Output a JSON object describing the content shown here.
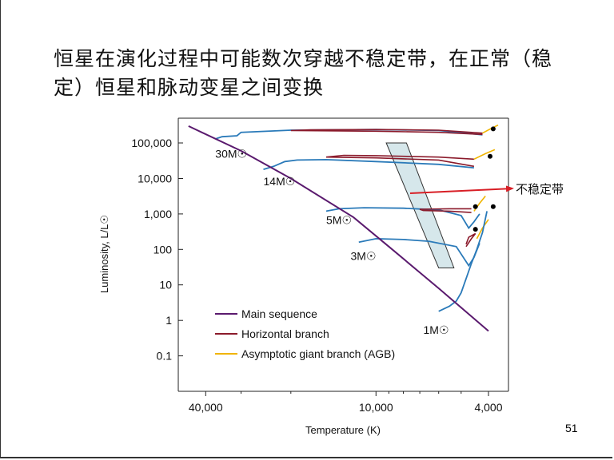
{
  "slide": {
    "title": "恒星在演化过程中可能数次穿越不稳定带，在正常（稳定）恒星和脉动变星之间变换",
    "page_number": "51"
  },
  "chart_data": {
    "type": "line",
    "title": "",
    "xlabel": "Temperature (K)",
    "ylabel": "Luminosity, L/L☉",
    "x_scale": "log",
    "x_reversed": true,
    "x_range": [
      50000,
      3400
    ],
    "y_scale": "log",
    "y_range": [
      0.01,
      500000
    ],
    "x_ticks": [
      {
        "value": 40000,
        "label": "40,000"
      },
      {
        "value": 10000,
        "label": "10,000"
      },
      {
        "value": 4000,
        "label": "4,000"
      }
    ],
    "x_minor_ticks": [
      30000,
      20000,
      9000,
      8000,
      7000,
      6000,
      5000
    ],
    "y_ticks": [
      {
        "value": 100000,
        "label": "100,000"
      },
      {
        "value": 10000,
        "label": "10,000"
      },
      {
        "value": 1000,
        "label": "1,000"
      },
      {
        "value": 100,
        "label": "100"
      },
      {
        "value": 10,
        "label": "10"
      },
      {
        "value": 1,
        "label": "1"
      },
      {
        "value": 0.1,
        "label": "0.1"
      }
    ],
    "main_sequence": {
      "name": "Main sequence",
      "color": "#5a1a6e",
      "points": [
        [
          46000,
          300000
        ],
        [
          30000,
          60000
        ],
        [
          20000,
          10000
        ],
        [
          12000,
          800
        ],
        [
          9000,
          120
        ],
        [
          6000,
          8
        ],
        [
          4000,
          0.5
        ]
      ]
    },
    "mass_labels": [
      {
        "label": "30M☉",
        "t": 37000,
        "l": 38000
      },
      {
        "label": "14M☉",
        "t": 25000,
        "l": 6500
      },
      {
        "label": "5M☉",
        "t": 15000,
        "l": 520
      },
      {
        "label": "3M☉",
        "t": 12300,
        "l": 50
      },
      {
        "label": "1M☉",
        "t": 6800,
        "l": 0.42
      }
    ],
    "tracks": [
      {
        "mass": "30M☉",
        "evolution": [
          [
            37000,
            130000
          ],
          [
            35000,
            150000
          ],
          [
            31000,
            160000
          ],
          [
            30000,
            200000
          ],
          [
            20000,
            230000
          ],
          [
            10000,
            240000
          ],
          [
            6000,
            225000
          ],
          [
            4200,
            170000
          ]
        ],
        "horizontal_branch": [
          [
            4200,
            175000
          ],
          [
            6000,
            200000
          ],
          [
            10000,
            215000
          ],
          [
            20000,
            225000
          ],
          [
            17000,
            235000
          ],
          [
            10000,
            240000
          ],
          [
            6000,
            230000
          ],
          [
            4200,
            190000
          ]
        ],
        "agb": [
          [
            4200,
            190000
          ],
          [
            3900,
            260000
          ],
          [
            3700,
            320000
          ]
        ],
        "endpoint": [
          3850,
          250000
        ]
      },
      {
        "mass": "14M☉",
        "evolution": [
          [
            25000,
            18000
          ],
          [
            23000,
            22000
          ],
          [
            21000,
            30000
          ],
          [
            19000,
            33000
          ],
          [
            15000,
            34000
          ],
          [
            10000,
            30000
          ],
          [
            6000,
            25000
          ],
          [
            4500,
            20000
          ]
        ],
        "horizontal_branch": [
          [
            4500,
            22000
          ],
          [
            6000,
            33000
          ],
          [
            10000,
            38000
          ],
          [
            15000,
            40000
          ],
          [
            13000,
            45000
          ],
          [
            10000,
            44000
          ],
          [
            6000,
            40000
          ],
          [
            4500,
            35000
          ]
        ],
        "agb": [
          [
            4500,
            35000
          ],
          [
            4100,
            50000
          ],
          [
            3800,
            65000
          ]
        ],
        "endpoint": [
          3950,
          42000
        ]
      },
      {
        "mass": "5M☉",
        "evolution": [
          [
            15000,
            1200
          ],
          [
            13500,
            1400
          ],
          [
            11000,
            1500
          ],
          [
            8000,
            1450
          ],
          [
            6000,
            1300
          ],
          [
            5000,
            900
          ],
          [
            4700,
            400
          ],
          [
            4500,
            600
          ],
          [
            4300,
            1000
          ]
        ],
        "horizontal_branch": [
          [
            4600,
            1100
          ],
          [
            5500,
            1200
          ],
          [
            6800,
            1250
          ],
          [
            7000,
            1350
          ],
          [
            5500,
            1400
          ],
          [
            4600,
            1400
          ]
        ],
        "agb": [
          [
            4500,
            1200
          ],
          [
            4300,
            2000
          ],
          [
            4100,
            3200
          ]
        ],
        "endpoint": [
          4450,
          1600
        ]
      },
      {
        "mass": "3M☉",
        "evolution": [
          [
            11500,
            160
          ],
          [
            10000,
            200
          ],
          [
            8000,
            190
          ],
          [
            6500,
            170
          ],
          [
            5200,
            120
          ],
          [
            4700,
            35
          ],
          [
            4500,
            60
          ],
          [
            4300,
            150
          ]
        ],
        "horizontal_branch": [
          [
            4800,
            120
          ],
          [
            4600,
            200
          ],
          [
            4450,
            280
          ],
          [
            4700,
            220
          ],
          [
            4800,
            140
          ]
        ],
        "agb": [
          [
            4400,
            200
          ],
          [
            4200,
            400
          ],
          [
            4000,
            700
          ]
        ],
        "endpoint": [
          4450,
          370
        ]
      },
      {
        "mass": "1M☉",
        "evolution": [
          [
            6000,
            1.8
          ],
          [
            5500,
            2.5
          ],
          [
            5200,
            3.5
          ],
          [
            5000,
            6
          ],
          [
            4800,
            15
          ],
          [
            4600,
            40
          ],
          [
            4400,
            100
          ],
          [
            4200,
            300
          ],
          [
            4050,
            1200
          ]
        ],
        "endpoint": [
          3850,
          1600
        ]
      }
    ],
    "instability_strip": {
      "color": "#cfe3e8",
      "corners_t": [
        9200,
        7800,
        5300,
        6000
      ],
      "corners_l": [
        100000,
        100000,
        30,
        30
      ]
    },
    "annotation": {
      "text": "不稳定带",
      "arrow_color": "#d81f26",
      "points_to_t": 7600,
      "points_to_l": 8000
    },
    "legend": [
      {
        "label": "Main sequence",
        "color": "#5a1a6e"
      },
      {
        "label": "Horizontal branch",
        "color": "#8b1a2b"
      },
      {
        "label": "Asymptotic giant branch (AGB)",
        "color": "#f0b400"
      }
    ],
    "legend_position": "bottom-left",
    "track_color": "#2a7ab9",
    "endpoint_color": "#000000"
  }
}
